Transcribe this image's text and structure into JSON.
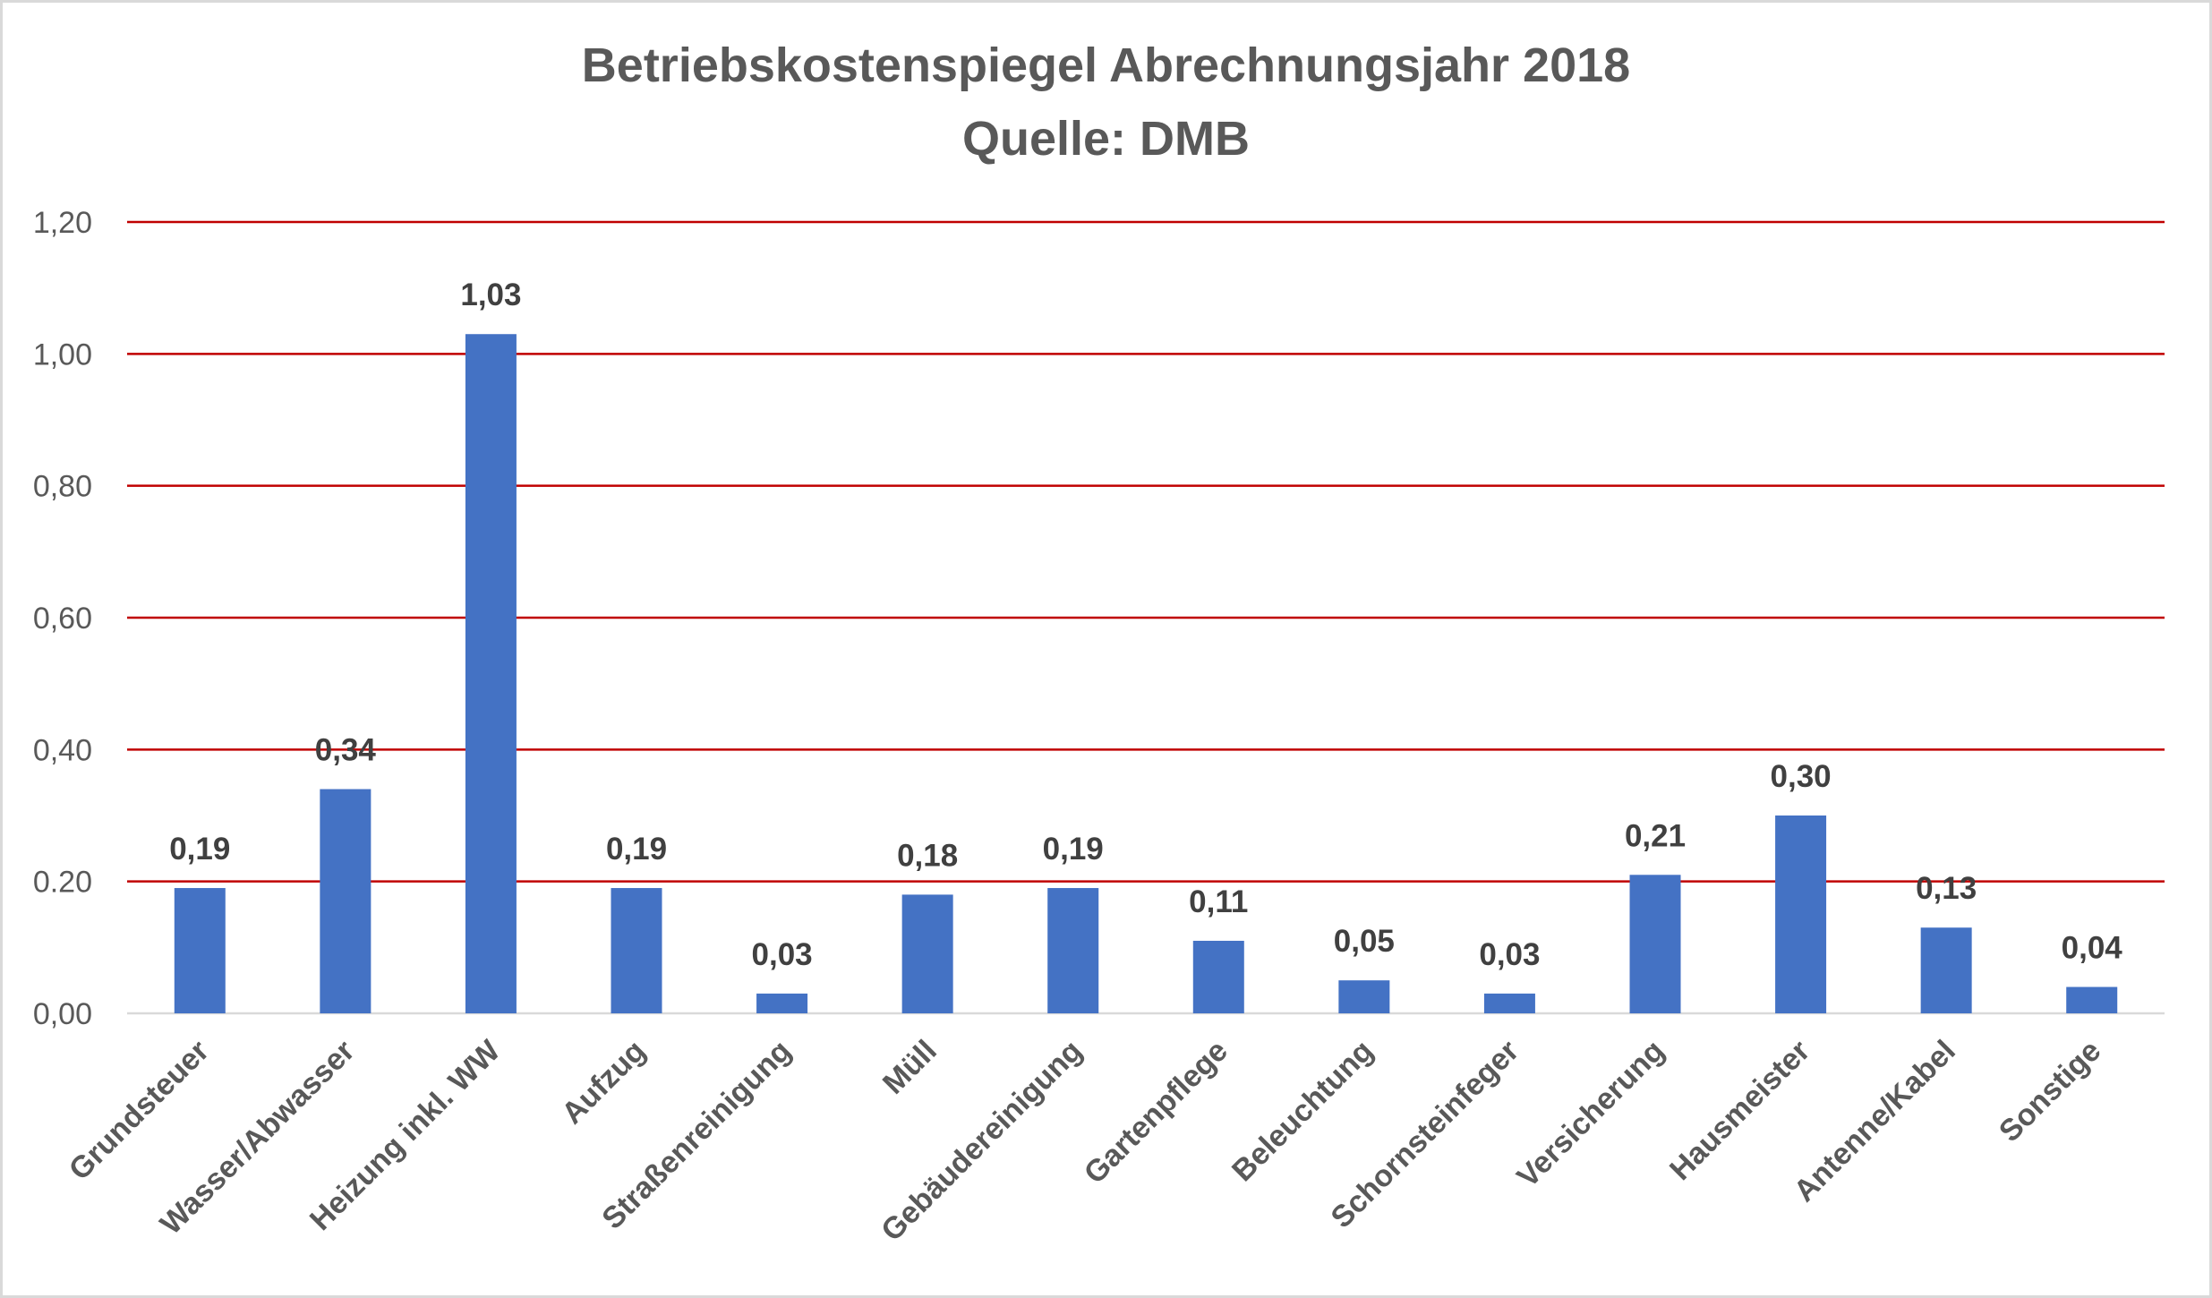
{
  "chart_data": {
    "type": "bar",
    "title": "Betriebskostenspiegel Abrechnungsjahr 2018",
    "subtitle": "Quelle: DMB",
    "categories": [
      "Grundsteuer",
      "Wasser/Abwasser",
      "Heizung inkl. WW",
      "Aufzug",
      "Straßenreinigung",
      "Müll",
      "Gebäudereinigung",
      "Gartenpflege",
      "Beleuchtung",
      "Schornsteinfeger",
      "Versicherung",
      "Hausmeister",
      "Antenne/Kabel",
      "Sonstige"
    ],
    "values": [
      0.19,
      0.34,
      1.03,
      0.19,
      0.03,
      0.18,
      0.19,
      0.11,
      0.05,
      0.03,
      0.21,
      0.3,
      0.13,
      0.04
    ],
    "data_labels": [
      "0,19",
      "0,34",
      "1,03",
      "0,19",
      "0,03",
      "0,18",
      "0,19",
      "0,11",
      "0,05",
      "0,03",
      "0,21",
      "0,30",
      "0,13",
      "0,04"
    ],
    "y_ticks": [
      0,
      0.2,
      0.4,
      0.6,
      0.8,
      1.0,
      1.2
    ],
    "y_tick_labels": [
      "0,00",
      "0.20",
      "0,40",
      "0,60",
      "0,80",
      "1,00",
      "1,20"
    ],
    "ylim": [
      0,
      1.2
    ],
    "grid": true,
    "legend": "none",
    "colors": {
      "bar": "#4472c4",
      "grid": "#c00000",
      "axis": "#d9d9d9",
      "text": "#595959"
    }
  }
}
